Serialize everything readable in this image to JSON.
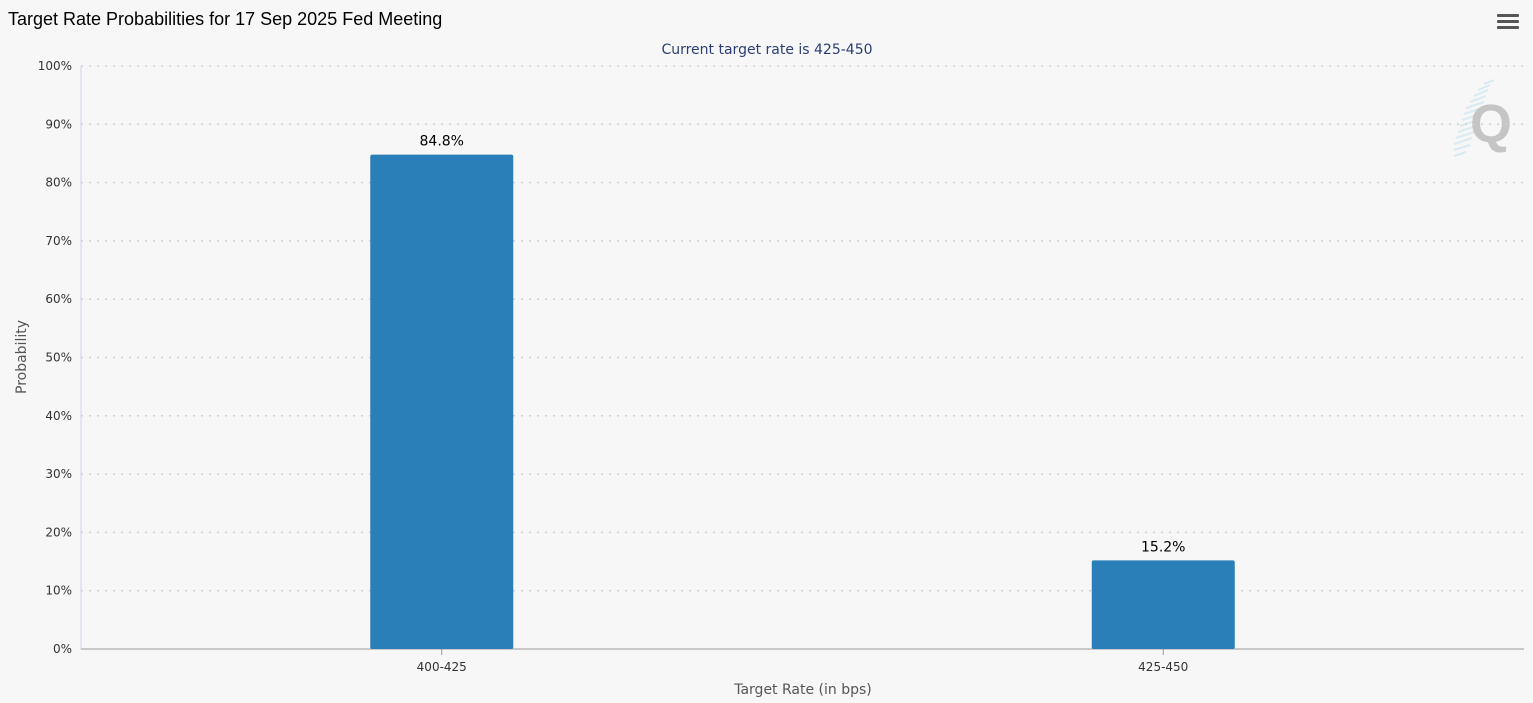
{
  "header": {
    "title": "Target Rate Probabilities for 17 Sep 2025 Fed Meeting"
  },
  "toolbar": {
    "menu_icon": "hamburger-menu-icon"
  },
  "watermark": {
    "letter": "Q"
  },
  "chart_data": {
    "type": "bar",
    "title": "Target Rate Probabilities for 17 Sep 2025 Fed Meeting",
    "subtitle": "Current target rate is 425-450",
    "xlabel": "Target Rate (in bps)",
    "ylabel": "Probability",
    "categories": [
      "400-425",
      "425-450"
    ],
    "values": [
      84.8,
      15.2
    ],
    "data_labels": [
      "84.8%",
      "15.2%"
    ],
    "ylim": [
      0,
      100
    ],
    "yticks": [
      0,
      10,
      20,
      30,
      40,
      50,
      60,
      70,
      80,
      90,
      100
    ],
    "ytick_labels": [
      "0%",
      "10%",
      "20%",
      "30%",
      "40%",
      "50%",
      "60%",
      "70%",
      "80%",
      "90%",
      "100%"
    ],
    "grid": true,
    "legend": "none",
    "bar_color": "#2a7fb8"
  }
}
